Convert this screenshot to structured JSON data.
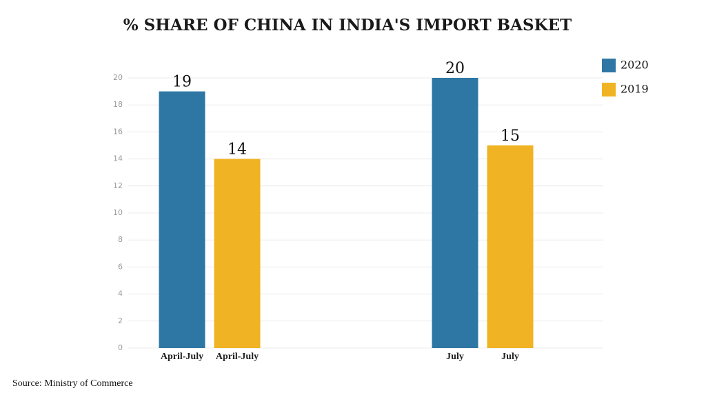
{
  "chart_data": {
    "type": "bar",
    "title": "% SHARE OF CHINA IN INDIA'S IMPORT BASKET",
    "source": "Source: Ministry of Commerce",
    "categories": [
      "April-July",
      "July"
    ],
    "series": [
      {
        "name": "2020",
        "color": "#2e77a5",
        "values": [
          19,
          20
        ]
      },
      {
        "name": "2019",
        "color": "#f0b323",
        "values": [
          14,
          15
        ]
      }
    ],
    "ylim": [
      0,
      20
    ],
    "yticks": [
      0,
      2,
      4,
      6,
      8,
      10,
      12,
      14,
      16,
      18,
      20
    ],
    "grid": true,
    "legend": "top-right"
  }
}
